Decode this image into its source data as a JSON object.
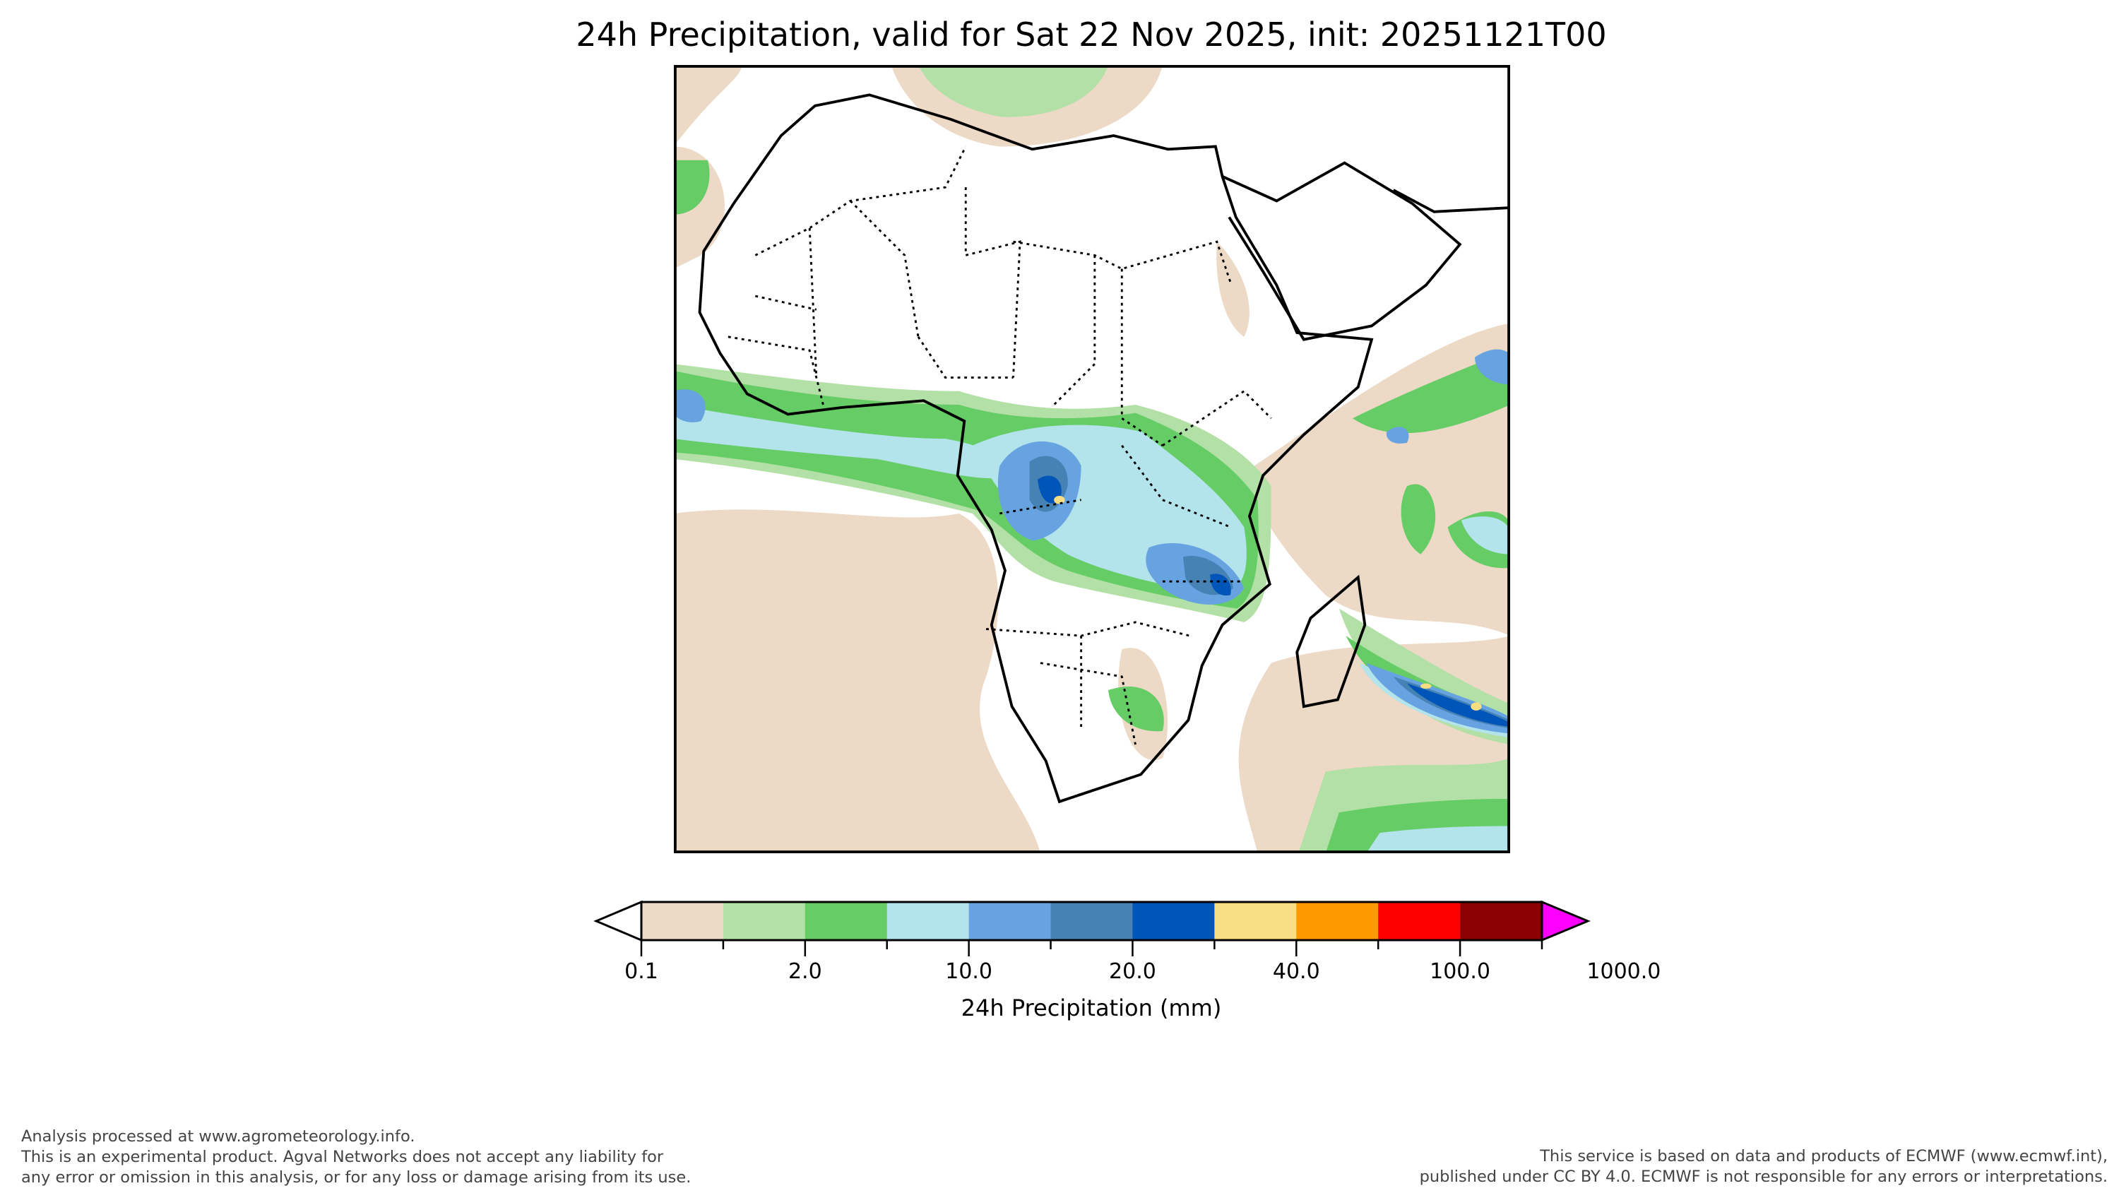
{
  "title": "24h Precipitation, valid for Sat 22 Nov 2025, init: 20251121T00",
  "colorbar": {
    "label": "24h Precipitation (mm)",
    "tick_labels": [
      "0.1",
      "2.0",
      "10.0",
      "20.0",
      "40.0",
      "100.0",
      "1000.0"
    ],
    "colors": [
      "#ecd9c6",
      "#b3e0a6",
      "#66cc66",
      "#b3e3eb",
      "#66a3e0",
      "#4682b4",
      "#0055b8",
      "#f7de82",
      "#ff9900",
      "#ff0000",
      "#8b0000",
      "#ff00ff"
    ],
    "extend": "both"
  },
  "map": {
    "region": "Africa",
    "colors": {
      "coast": "#000000",
      "borders": "#000000"
    }
  },
  "footer": {
    "left": [
      "Analysis processed at www.agrometeorology.info.",
      "This is an experimental product. Agval Networks does not accept any liability for",
      "any error or omission in this analysis, or for any loss or damage arising from its use."
    ],
    "right": [
      "This service is based on data and products of ECMWF (www.ecmwf.int),",
      "published under CC BY 4.0. ECMWF is not responsible for any errors or interpretations."
    ]
  }
}
